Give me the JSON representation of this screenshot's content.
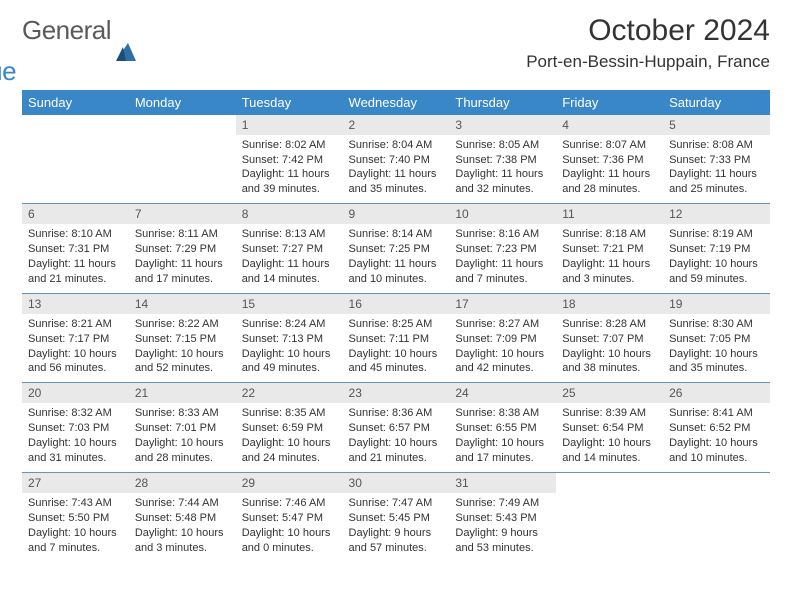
{
  "brand": {
    "a": "General",
    "b": "Blue",
    "icon_color": "#2f6fa8"
  },
  "title": {
    "month": "October 2024",
    "location": "Port-en-Bessin-Huppain, France"
  },
  "colors": {
    "header_bg": "#3a87c8",
    "header_fg": "#ffffff",
    "daynum_bg": "#e9e9e9",
    "cell_border": "#6a94b5"
  },
  "day_labels": [
    "Sunday",
    "Monday",
    "Tuesday",
    "Wednesday",
    "Thursday",
    "Friday",
    "Saturday"
  ],
  "weeks": [
    [
      {
        "n": "",
        "sr": "",
        "ss": "",
        "dl": ""
      },
      {
        "n": "",
        "sr": "",
        "ss": "",
        "dl": ""
      },
      {
        "n": "1",
        "sr": "Sunrise: 8:02 AM",
        "ss": "Sunset: 7:42 PM",
        "dl": "Daylight: 11 hours and 39 minutes."
      },
      {
        "n": "2",
        "sr": "Sunrise: 8:04 AM",
        "ss": "Sunset: 7:40 PM",
        "dl": "Daylight: 11 hours and 35 minutes."
      },
      {
        "n": "3",
        "sr": "Sunrise: 8:05 AM",
        "ss": "Sunset: 7:38 PM",
        "dl": "Daylight: 11 hours and 32 minutes."
      },
      {
        "n": "4",
        "sr": "Sunrise: 8:07 AM",
        "ss": "Sunset: 7:36 PM",
        "dl": "Daylight: 11 hours and 28 minutes."
      },
      {
        "n": "5",
        "sr": "Sunrise: 8:08 AM",
        "ss": "Sunset: 7:33 PM",
        "dl": "Daylight: 11 hours and 25 minutes."
      }
    ],
    [
      {
        "n": "6",
        "sr": "Sunrise: 8:10 AM",
        "ss": "Sunset: 7:31 PM",
        "dl": "Daylight: 11 hours and 21 minutes."
      },
      {
        "n": "7",
        "sr": "Sunrise: 8:11 AM",
        "ss": "Sunset: 7:29 PM",
        "dl": "Daylight: 11 hours and 17 minutes."
      },
      {
        "n": "8",
        "sr": "Sunrise: 8:13 AM",
        "ss": "Sunset: 7:27 PM",
        "dl": "Daylight: 11 hours and 14 minutes."
      },
      {
        "n": "9",
        "sr": "Sunrise: 8:14 AM",
        "ss": "Sunset: 7:25 PM",
        "dl": "Daylight: 11 hours and 10 minutes."
      },
      {
        "n": "10",
        "sr": "Sunrise: 8:16 AM",
        "ss": "Sunset: 7:23 PM",
        "dl": "Daylight: 11 hours and 7 minutes."
      },
      {
        "n": "11",
        "sr": "Sunrise: 8:18 AM",
        "ss": "Sunset: 7:21 PM",
        "dl": "Daylight: 11 hours and 3 minutes."
      },
      {
        "n": "12",
        "sr": "Sunrise: 8:19 AM",
        "ss": "Sunset: 7:19 PM",
        "dl": "Daylight: 10 hours and 59 minutes."
      }
    ],
    [
      {
        "n": "13",
        "sr": "Sunrise: 8:21 AM",
        "ss": "Sunset: 7:17 PM",
        "dl": "Daylight: 10 hours and 56 minutes."
      },
      {
        "n": "14",
        "sr": "Sunrise: 8:22 AM",
        "ss": "Sunset: 7:15 PM",
        "dl": "Daylight: 10 hours and 52 minutes."
      },
      {
        "n": "15",
        "sr": "Sunrise: 8:24 AM",
        "ss": "Sunset: 7:13 PM",
        "dl": "Daylight: 10 hours and 49 minutes."
      },
      {
        "n": "16",
        "sr": "Sunrise: 8:25 AM",
        "ss": "Sunset: 7:11 PM",
        "dl": "Daylight: 10 hours and 45 minutes."
      },
      {
        "n": "17",
        "sr": "Sunrise: 8:27 AM",
        "ss": "Sunset: 7:09 PM",
        "dl": "Daylight: 10 hours and 42 minutes."
      },
      {
        "n": "18",
        "sr": "Sunrise: 8:28 AM",
        "ss": "Sunset: 7:07 PM",
        "dl": "Daylight: 10 hours and 38 minutes."
      },
      {
        "n": "19",
        "sr": "Sunrise: 8:30 AM",
        "ss": "Sunset: 7:05 PM",
        "dl": "Daylight: 10 hours and 35 minutes."
      }
    ],
    [
      {
        "n": "20",
        "sr": "Sunrise: 8:32 AM",
        "ss": "Sunset: 7:03 PM",
        "dl": "Daylight: 10 hours and 31 minutes."
      },
      {
        "n": "21",
        "sr": "Sunrise: 8:33 AM",
        "ss": "Sunset: 7:01 PM",
        "dl": "Daylight: 10 hours and 28 minutes."
      },
      {
        "n": "22",
        "sr": "Sunrise: 8:35 AM",
        "ss": "Sunset: 6:59 PM",
        "dl": "Daylight: 10 hours and 24 minutes."
      },
      {
        "n": "23",
        "sr": "Sunrise: 8:36 AM",
        "ss": "Sunset: 6:57 PM",
        "dl": "Daylight: 10 hours and 21 minutes."
      },
      {
        "n": "24",
        "sr": "Sunrise: 8:38 AM",
        "ss": "Sunset: 6:55 PM",
        "dl": "Daylight: 10 hours and 17 minutes."
      },
      {
        "n": "25",
        "sr": "Sunrise: 8:39 AM",
        "ss": "Sunset: 6:54 PM",
        "dl": "Daylight: 10 hours and 14 minutes."
      },
      {
        "n": "26",
        "sr": "Sunrise: 8:41 AM",
        "ss": "Sunset: 6:52 PM",
        "dl": "Daylight: 10 hours and 10 minutes."
      }
    ],
    [
      {
        "n": "27",
        "sr": "Sunrise: 7:43 AM",
        "ss": "Sunset: 5:50 PM",
        "dl": "Daylight: 10 hours and 7 minutes."
      },
      {
        "n": "28",
        "sr": "Sunrise: 7:44 AM",
        "ss": "Sunset: 5:48 PM",
        "dl": "Daylight: 10 hours and 3 minutes."
      },
      {
        "n": "29",
        "sr": "Sunrise: 7:46 AM",
        "ss": "Sunset: 5:47 PM",
        "dl": "Daylight: 10 hours and 0 minutes."
      },
      {
        "n": "30",
        "sr": "Sunrise: 7:47 AM",
        "ss": "Sunset: 5:45 PM",
        "dl": "Daylight: 9 hours and 57 minutes."
      },
      {
        "n": "31",
        "sr": "Sunrise: 7:49 AM",
        "ss": "Sunset: 5:43 PM",
        "dl": "Daylight: 9 hours and 53 minutes."
      },
      {
        "n": "",
        "sr": "",
        "ss": "",
        "dl": ""
      },
      {
        "n": "",
        "sr": "",
        "ss": "",
        "dl": ""
      }
    ]
  ]
}
